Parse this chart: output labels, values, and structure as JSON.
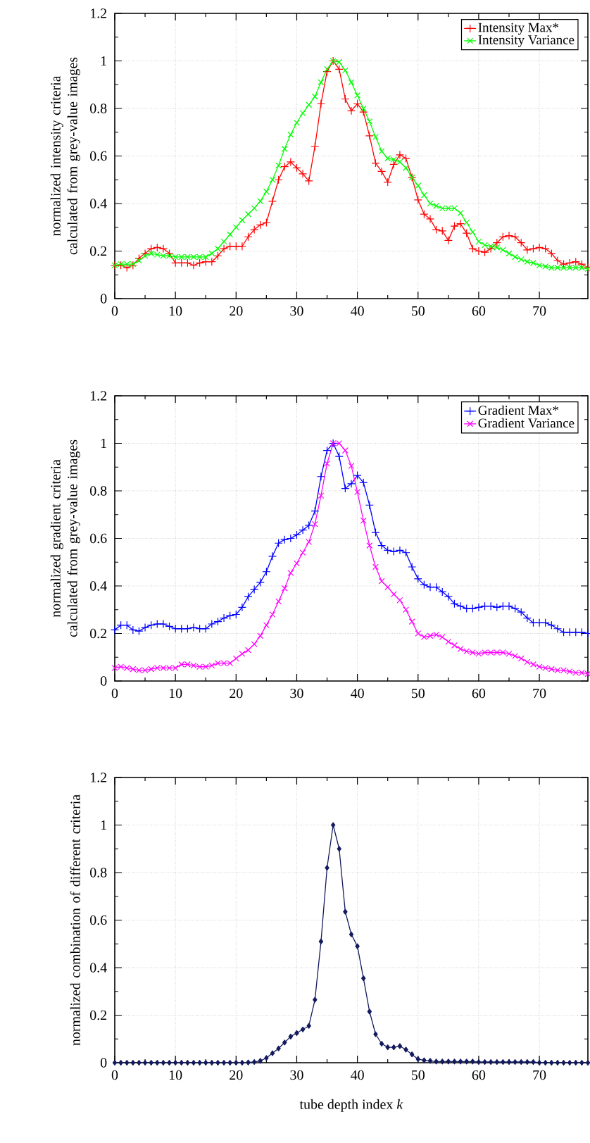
{
  "chart_data": [
    {
      "type": "line",
      "ylabel": "normalized intensity criteria calculated from grey-value images",
      "x": [
        0,
        1,
        2,
        3,
        4,
        5,
        6,
        7,
        8,
        9,
        10,
        11,
        12,
        13,
        14,
        15,
        16,
        17,
        18,
        19,
        20,
        21,
        22,
        23,
        24,
        25,
        26,
        27,
        28,
        29,
        30,
        31,
        32,
        33,
        34,
        35,
        36,
        37,
        38,
        39,
        40,
        41,
        42,
        43,
        44,
        45,
        46,
        47,
        48,
        49,
        50,
        51,
        52,
        53,
        54,
        55,
        56,
        57,
        58,
        59,
        60,
        61,
        62,
        63,
        64,
        65,
        66,
        67,
        68,
        69,
        70,
        71,
        72,
        73,
        74,
        75,
        76,
        77,
        78
      ],
      "series": [
        {
          "name": "Intensity Max*",
          "color": "#ff0000",
          "marker": "plus",
          "values": [
            0.14,
            0.14,
            0.13,
            0.14,
            0.17,
            0.19,
            0.21,
            0.215,
            0.21,
            0.19,
            0.15,
            0.15,
            0.15,
            0.14,
            0.15,
            0.155,
            0.155,
            0.18,
            0.21,
            0.22,
            0.22,
            0.22,
            0.26,
            0.29,
            0.31,
            0.32,
            0.41,
            0.5,
            0.555,
            0.575,
            0.55,
            0.525,
            0.495,
            0.64,
            0.82,
            0.955,
            1.0,
            0.965,
            0.84,
            0.79,
            0.82,
            0.785,
            0.685,
            0.57,
            0.535,
            0.49,
            0.565,
            0.605,
            0.59,
            0.51,
            0.415,
            0.355,
            0.335,
            0.29,
            0.285,
            0.245,
            0.305,
            0.315,
            0.275,
            0.21,
            0.2,
            0.195,
            0.21,
            0.235,
            0.26,
            0.265,
            0.26,
            0.235,
            0.205,
            0.21,
            0.215,
            0.21,
            0.19,
            0.16,
            0.145,
            0.15,
            0.155,
            0.145,
            0.13
          ]
        },
        {
          "name": "Intensity Variance",
          "color": "#00ff00",
          "marker": "cross",
          "values": [
            0.14,
            0.145,
            0.145,
            0.145,
            0.16,
            0.18,
            0.19,
            0.185,
            0.18,
            0.18,
            0.175,
            0.175,
            0.175,
            0.175,
            0.175,
            0.175,
            0.19,
            0.21,
            0.24,
            0.27,
            0.3,
            0.33,
            0.355,
            0.38,
            0.41,
            0.45,
            0.5,
            0.56,
            0.63,
            0.69,
            0.74,
            0.78,
            0.815,
            0.85,
            0.91,
            0.965,
            1.0,
            0.995,
            0.96,
            0.91,
            0.855,
            0.8,
            0.745,
            0.68,
            0.62,
            0.59,
            0.585,
            0.575,
            0.55,
            0.51,
            0.475,
            0.435,
            0.4,
            0.39,
            0.38,
            0.38,
            0.38,
            0.36,
            0.32,
            0.28,
            0.24,
            0.225,
            0.22,
            0.215,
            0.205,
            0.19,
            0.175,
            0.165,
            0.155,
            0.15,
            0.14,
            0.135,
            0.13,
            0.13,
            0.13,
            0.13,
            0.13,
            0.13,
            0.125
          ]
        }
      ],
      "xlim": [
        0,
        78
      ],
      "ylim": [
        0,
        1.2
      ],
      "xticks": [
        0,
        10,
        20,
        30,
        40,
        50,
        60,
        70
      ],
      "yticks": [
        0,
        0.2,
        0.4,
        0.6,
        0.8,
        1,
        1.2
      ],
      "grid": true,
      "legend": "top right"
    },
    {
      "type": "line",
      "ylabel": "normalized gradient criteria calculated from grey-value images",
      "x": [
        0,
        1,
        2,
        3,
        4,
        5,
        6,
        7,
        8,
        9,
        10,
        11,
        12,
        13,
        14,
        15,
        16,
        17,
        18,
        19,
        20,
        21,
        22,
        23,
        24,
        25,
        26,
        27,
        28,
        29,
        30,
        31,
        32,
        33,
        34,
        35,
        36,
        37,
        38,
        39,
        40,
        41,
        42,
        43,
        44,
        45,
        46,
        47,
        48,
        49,
        50,
        51,
        52,
        53,
        54,
        55,
        56,
        57,
        58,
        59,
        60,
        61,
        62,
        63,
        64,
        65,
        66,
        67,
        68,
        69,
        70,
        71,
        72,
        73,
        74,
        75,
        76,
        77,
        78
      ],
      "series": [
        {
          "name": "Gradient Max*",
          "color": "#0000ff",
          "marker": "plus",
          "values": [
            0.215,
            0.235,
            0.235,
            0.215,
            0.21,
            0.225,
            0.235,
            0.24,
            0.24,
            0.23,
            0.22,
            0.22,
            0.22,
            0.225,
            0.22,
            0.22,
            0.24,
            0.25,
            0.265,
            0.275,
            0.28,
            0.31,
            0.355,
            0.385,
            0.415,
            0.46,
            0.525,
            0.58,
            0.595,
            0.6,
            0.615,
            0.635,
            0.655,
            0.715,
            0.86,
            0.97,
            1.0,
            0.945,
            0.81,
            0.83,
            0.865,
            0.835,
            0.74,
            0.625,
            0.57,
            0.55,
            0.545,
            0.55,
            0.54,
            0.48,
            0.43,
            0.405,
            0.395,
            0.395,
            0.375,
            0.355,
            0.325,
            0.315,
            0.305,
            0.305,
            0.31,
            0.315,
            0.315,
            0.31,
            0.315,
            0.315,
            0.305,
            0.29,
            0.265,
            0.245,
            0.245,
            0.245,
            0.235,
            0.22,
            0.205,
            0.205,
            0.205,
            0.205,
            0.2
          ]
        },
        {
          "name": "Gradient Variance",
          "color": "#ff00ff",
          "marker": "cross",
          "values": [
            0.055,
            0.06,
            0.055,
            0.05,
            0.045,
            0.045,
            0.05,
            0.055,
            0.055,
            0.055,
            0.055,
            0.07,
            0.07,
            0.065,
            0.06,
            0.06,
            0.065,
            0.075,
            0.075,
            0.075,
            0.095,
            0.115,
            0.13,
            0.155,
            0.19,
            0.235,
            0.28,
            0.335,
            0.39,
            0.455,
            0.495,
            0.54,
            0.585,
            0.66,
            0.78,
            0.915,
            1.0,
            1.0,
            0.97,
            0.905,
            0.795,
            0.675,
            0.57,
            0.48,
            0.42,
            0.395,
            0.365,
            0.34,
            0.3,
            0.25,
            0.2,
            0.185,
            0.19,
            0.195,
            0.185,
            0.165,
            0.15,
            0.135,
            0.125,
            0.12,
            0.115,
            0.12,
            0.12,
            0.12,
            0.12,
            0.115,
            0.105,
            0.095,
            0.08,
            0.07,
            0.06,
            0.055,
            0.05,
            0.045,
            0.045,
            0.04,
            0.035,
            0.035,
            0.03
          ]
        }
      ],
      "xlim": [
        0,
        78
      ],
      "ylim": [
        0,
        1.2
      ],
      "xticks": [
        0,
        10,
        20,
        30,
        40,
        50,
        60,
        70
      ],
      "yticks": [
        0,
        0.2,
        0.4,
        0.6,
        0.8,
        1,
        1.2
      ],
      "grid": true,
      "legend": "top right"
    },
    {
      "type": "line",
      "ylabel": "normalized combination of different criteria",
      "xlabel": "tube depth index *k*",
      "x": [
        0,
        1,
        2,
        3,
        4,
        5,
        6,
        7,
        8,
        9,
        10,
        11,
        12,
        13,
        14,
        15,
        16,
        17,
        18,
        19,
        20,
        21,
        22,
        23,
        24,
        25,
        26,
        27,
        28,
        29,
        30,
        31,
        32,
        33,
        34,
        35,
        36,
        37,
        38,
        39,
        40,
        41,
        42,
        43,
        44,
        45,
        46,
        47,
        48,
        49,
        50,
        51,
        52,
        53,
        54,
        55,
        56,
        57,
        58,
        59,
        60,
        61,
        62,
        63,
        64,
        65,
        66,
        67,
        68,
        69,
        70,
        71,
        72,
        73,
        74,
        75,
        76,
        77,
        78
      ],
      "series": [
        {
          "color": "#131a5e",
          "marker": "diamond",
          "values": [
            0,
            0,
            0,
            0,
            0,
            0,
            0,
            0,
            0,
            0,
            0,
            0,
            0,
            0,
            0,
            0,
            0,
            0,
            0,
            0,
            0,
            0,
            0.001,
            0.003,
            0.008,
            0.02,
            0.04,
            0.06,
            0.085,
            0.11,
            0.125,
            0.14,
            0.155,
            0.265,
            0.51,
            0.82,
            1.0,
            0.9,
            0.635,
            0.54,
            0.49,
            0.355,
            0.215,
            0.12,
            0.08,
            0.065,
            0.065,
            0.07,
            0.055,
            0.035,
            0.015,
            0.01,
            0.008,
            0.005,
            0.005,
            0.005,
            0.005,
            0.005,
            0.005,
            0.005,
            0.003,
            0.003,
            0.003,
            0.003,
            0.003,
            0.003,
            0.003,
            0.003,
            0.003,
            0.003,
            0,
            0,
            0,
            0,
            0,
            0,
            0,
            0,
            0
          ]
        }
      ],
      "xlim": [
        0,
        78
      ],
      "ylim": [
        0,
        1.2
      ],
      "xticks": [
        0,
        10,
        20,
        30,
        40,
        50,
        60,
        70
      ],
      "yticks": [
        0,
        0.2,
        0.4,
        0.6,
        0.8,
        1,
        1.2
      ],
      "grid": true,
      "legend": false
    }
  ]
}
